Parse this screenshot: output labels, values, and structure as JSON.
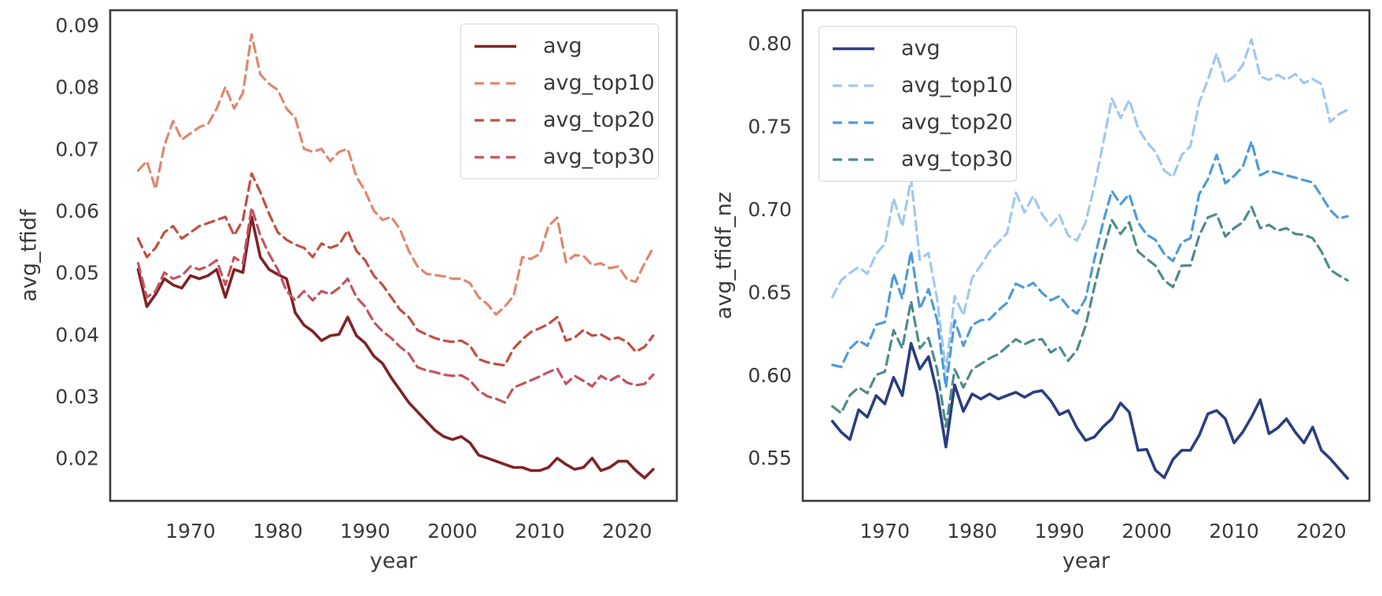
{
  "figure": {
    "background": "#ffffff",
    "frame_color": "#3b3b3b",
    "text_color": "#3a3a3a",
    "legend_border_color": "#d4d4d4"
  },
  "chart_data": [
    {
      "type": "line",
      "panel": "left",
      "title": "",
      "xlabel": "year",
      "ylabel": "avg_tfidf",
      "grid": false,
      "legend_position": "upper right",
      "xlim": [
        1960.8,
        2025.7
      ],
      "ylim": [
        0.0131,
        0.0924
      ],
      "x_ticks": [
        1970,
        1980,
        1990,
        2000,
        2010,
        2020
      ],
      "x_tick_labels": [
        "1970",
        "1980",
        "1990",
        "2000",
        "2010",
        "2020"
      ],
      "y_ticks": [
        0.02,
        0.03,
        0.04,
        0.05,
        0.06,
        0.07,
        0.08,
        0.09
      ],
      "y_tick_labels": [
        "0.02",
        "0.03",
        "0.04",
        "0.05",
        "0.06",
        "0.07",
        "0.08",
        "0.09"
      ],
      "x": [
        1964,
        1965,
        1966,
        1967,
        1968,
        1969,
        1970,
        1971,
        1972,
        1973,
        1974,
        1975,
        1976,
        1977,
        1978,
        1979,
        1980,
        1981,
        1982,
        1983,
        1984,
        1985,
        1986,
        1987,
        1988,
        1989,
        1990,
        1991,
        1992,
        1993,
        1994,
        1995,
        1996,
        1997,
        1998,
        1999,
        2000,
        2001,
        2002,
        2003,
        2004,
        2005,
        2006,
        2007,
        2008,
        2009,
        2010,
        2011,
        2012,
        2013,
        2014,
        2015,
        2016,
        2017,
        2018,
        2019,
        2020,
        2021,
        2022,
        2023
      ],
      "series": [
        {
          "name": "avg",
          "style": "solid",
          "color": "#7f2327",
          "values": [
            0.0505,
            0.0445,
            0.0465,
            0.049,
            0.048,
            0.0475,
            0.0495,
            0.049,
            0.0495,
            0.0505,
            0.046,
            0.0505,
            0.05,
            0.059,
            0.0525,
            0.0505,
            0.0497,
            0.049,
            0.0435,
            0.0415,
            0.0405,
            0.039,
            0.0398,
            0.04,
            0.0428,
            0.0398,
            0.0386,
            0.0365,
            0.0353,
            0.033,
            0.031,
            0.029,
            0.0275,
            0.026,
            0.0245,
            0.0235,
            0.023,
            0.0235,
            0.0225,
            0.0205,
            0.02,
            0.0195,
            0.019,
            0.0185,
            0.0185,
            0.018,
            0.018,
            0.0185,
            0.02,
            0.019,
            0.0182,
            0.0185,
            0.02,
            0.018,
            0.0185,
            0.0195,
            0.0195,
            0.018,
            0.0168,
            0.0182
          ]
        },
        {
          "name": "avg_top10",
          "style": "dashed",
          "color": "#e0876e",
          "values": [
            0.0665,
            0.068,
            0.0635,
            0.0705,
            0.0745,
            0.0715,
            0.0725,
            0.0735,
            0.074,
            0.0765,
            0.08,
            0.0765,
            0.079,
            0.0885,
            0.082,
            0.0805,
            0.0795,
            0.0765,
            0.075,
            0.07,
            0.0695,
            0.07,
            0.068,
            0.0695,
            0.07,
            0.0655,
            0.0632,
            0.06,
            0.0585,
            0.059,
            0.057,
            0.0535,
            0.051,
            0.0498,
            0.0496,
            0.0494,
            0.049,
            0.049,
            0.0483,
            0.046,
            0.0449,
            0.0432,
            0.0445,
            0.0462,
            0.0525,
            0.0522,
            0.053,
            0.0575,
            0.0589,
            0.0517,
            0.0528,
            0.0527,
            0.0512,
            0.0515,
            0.0507,
            0.051,
            0.0489,
            0.0485,
            0.0515,
            0.054
          ]
        },
        {
          "name": "avg_top20",
          "style": "dashed",
          "color": "#c24f40",
          "values": [
            0.0555,
            0.0525,
            0.054,
            0.0565,
            0.0575,
            0.0555,
            0.0565,
            0.0575,
            0.058,
            0.0585,
            0.059,
            0.056,
            0.0585,
            0.066,
            0.063,
            0.0595,
            0.0565,
            0.0553,
            0.0545,
            0.054,
            0.0525,
            0.0547,
            0.054,
            0.0545,
            0.0568,
            0.0535,
            0.052,
            0.0495,
            0.048,
            0.046,
            0.044,
            0.0428,
            0.0407,
            0.04,
            0.0394,
            0.039,
            0.0388,
            0.039,
            0.0382,
            0.036,
            0.0355,
            0.0352,
            0.035,
            0.0377,
            0.0392,
            0.0404,
            0.041,
            0.0417,
            0.0428,
            0.039,
            0.0395,
            0.0407,
            0.0398,
            0.04,
            0.0392,
            0.0395,
            0.0388,
            0.0372,
            0.038,
            0.0398
          ]
        },
        {
          "name": "avg_top30",
          "style": "dashed",
          "color": "#c5535e",
          "values": [
            0.0515,
            0.046,
            0.047,
            0.05,
            0.049,
            0.0495,
            0.051,
            0.0505,
            0.051,
            0.052,
            0.048,
            0.0525,
            0.0515,
            0.0605,
            0.056,
            0.053,
            0.0505,
            0.047,
            0.0455,
            0.047,
            0.0455,
            0.047,
            0.0465,
            0.0475,
            0.049,
            0.046,
            0.0445,
            0.042,
            0.0405,
            0.0394,
            0.038,
            0.0369,
            0.0347,
            0.0342,
            0.0339,
            0.0335,
            0.0333,
            0.0334,
            0.0326,
            0.0309,
            0.03,
            0.0296,
            0.029,
            0.0314,
            0.032,
            0.0326,
            0.0332,
            0.0339,
            0.0345,
            0.032,
            0.0333,
            0.0325,
            0.0316,
            0.0333,
            0.0325,
            0.0333,
            0.0322,
            0.0318,
            0.032,
            0.0335
          ]
        }
      ]
    },
    {
      "type": "line",
      "panel": "right",
      "title": "",
      "xlabel": "year",
      "ylabel": "avg_tfidf_nz",
      "grid": false,
      "legend_position": "upper left",
      "xlim": [
        1960.6,
        2025.5
      ],
      "ylim": [
        0.524,
        0.82
      ],
      "x_ticks": [
        1970,
        1980,
        1990,
        2000,
        2010,
        2020
      ],
      "x_tick_labels": [
        "1970",
        "1980",
        "1990",
        "2000",
        "2010",
        "2020"
      ],
      "y_ticks": [
        0.55,
        0.6,
        0.65,
        0.7,
        0.75,
        0.8
      ],
      "y_tick_labels": [
        "0.55",
        "0.60",
        "0.65",
        "0.70",
        "0.75",
        "0.80"
      ],
      "x": [
        1964,
        1965,
        1966,
        1967,
        1968,
        1969,
        1970,
        1971,
        1972,
        1973,
        1974,
        1975,
        1976,
        1977,
        1978,
        1979,
        1980,
        1981,
        1982,
        1983,
        1984,
        1985,
        1986,
        1987,
        1988,
        1989,
        1990,
        1991,
        1992,
        1993,
        1994,
        1995,
        1996,
        1997,
        1998,
        1999,
        2000,
        2001,
        2002,
        2003,
        2004,
        2005,
        2006,
        2007,
        2008,
        2009,
        2010,
        2011,
        2012,
        2013,
        2014,
        2015,
        2016,
        2017,
        2018,
        2019,
        2020,
        2021,
        2022,
        2023
      ],
      "series": [
        {
          "name": "avg",
          "style": "solid",
          "color": "#2b3e7f",
          "values": [
            0.572,
            0.5655,
            0.561,
            0.579,
            0.5745,
            0.5875,
            0.5825,
            0.5985,
            0.5875,
            0.619,
            0.6035,
            0.611,
            0.589,
            0.5565,
            0.594,
            0.578,
            0.5885,
            0.5855,
            0.5885,
            0.5855,
            0.5875,
            0.5895,
            0.5865,
            0.5895,
            0.5905,
            0.5845,
            0.576,
            0.5785,
            0.568,
            0.5605,
            0.5625,
            0.5687,
            0.5735,
            0.583,
            0.5775,
            0.5545,
            0.555,
            0.5425,
            0.538,
            0.549,
            0.5545,
            0.5545,
            0.5635,
            0.5765,
            0.5785,
            0.5735,
            0.559,
            0.5655,
            0.5745,
            0.585,
            0.5645,
            0.568,
            0.5735,
            0.5655,
            0.559,
            0.5685,
            0.5545,
            0.5495,
            0.5435,
            0.5375
          ]
        },
        {
          "name": "avg_top10",
          "style": "dashed",
          "color": "#a0c8ef",
          "values": [
            0.647,
            0.657,
            0.6615,
            0.665,
            0.661,
            0.673,
            0.679,
            0.7065,
            0.6895,
            0.7185,
            0.6695,
            0.6735,
            0.6455,
            0.602,
            0.6475,
            0.636,
            0.6585,
            0.666,
            0.6745,
            0.68,
            0.6855,
            0.71,
            0.698,
            0.708,
            0.697,
            0.69,
            0.6965,
            0.684,
            0.681,
            0.692,
            0.7138,
            0.7394,
            0.7668,
            0.755,
            0.7659,
            0.749,
            0.7405,
            0.7346,
            0.7233,
            0.7194,
            0.7327,
            0.738,
            0.7644,
            0.778,
            0.7938,
            0.776,
            0.78,
            0.787,
            0.8024,
            0.78,
            0.778,
            0.781,
            0.778,
            0.7815,
            0.776,
            0.7785,
            0.7755,
            0.7526,
            0.7573,
            0.76
          ]
        },
        {
          "name": "avg_top20",
          "style": "dashed",
          "color": "#4d9bd9",
          "values": [
            0.606,
            0.6048,
            0.616,
            0.6208,
            0.6175,
            0.6303,
            0.6318,
            0.6611,
            0.646,
            0.6745,
            0.6398,
            0.6517,
            0.633,
            0.5924,
            0.633,
            0.6175,
            0.63,
            0.633,
            0.6335,
            0.639,
            0.6435,
            0.655,
            0.6525,
            0.6555,
            0.6495,
            0.645,
            0.6475,
            0.641,
            0.637,
            0.646,
            0.6697,
            0.692,
            0.711,
            0.703,
            0.709,
            0.692,
            0.6845,
            0.6815,
            0.673,
            0.6687,
            0.68,
            0.6825,
            0.709,
            0.718,
            0.7327,
            0.7156,
            0.72,
            0.7256,
            0.7408,
            0.7204,
            0.7232,
            0.7218,
            0.7204,
            0.719,
            0.7175,
            0.7161,
            0.708,
            0.6995,
            0.6943,
            0.6957
          ]
        },
        {
          "name": "avg_top30",
          "style": "dashed",
          "color": "#4f8b8b",
          "values": [
            0.581,
            0.577,
            0.5877,
            0.5924,
            0.589,
            0.6,
            0.6019,
            0.627,
            0.616,
            0.6445,
            0.616,
            0.6223,
            0.6033,
            0.5687,
            0.6033,
            0.5924,
            0.6033,
            0.6066,
            0.61,
            0.6125,
            0.617,
            0.6215,
            0.6185,
            0.621,
            0.6215,
            0.6135,
            0.617,
            0.6085,
            0.615,
            0.6295,
            0.653,
            0.6744,
            0.6934,
            0.685,
            0.692,
            0.6744,
            0.67,
            0.6659,
            0.657,
            0.653,
            0.6659,
            0.666,
            0.684,
            0.695,
            0.697,
            0.6835,
            0.6885,
            0.692,
            0.7014,
            0.6885,
            0.6905,
            0.687,
            0.6885,
            0.685,
            0.6845,
            0.6825,
            0.6745,
            0.6635,
            0.66,
            0.657
          ]
        }
      ]
    }
  ]
}
